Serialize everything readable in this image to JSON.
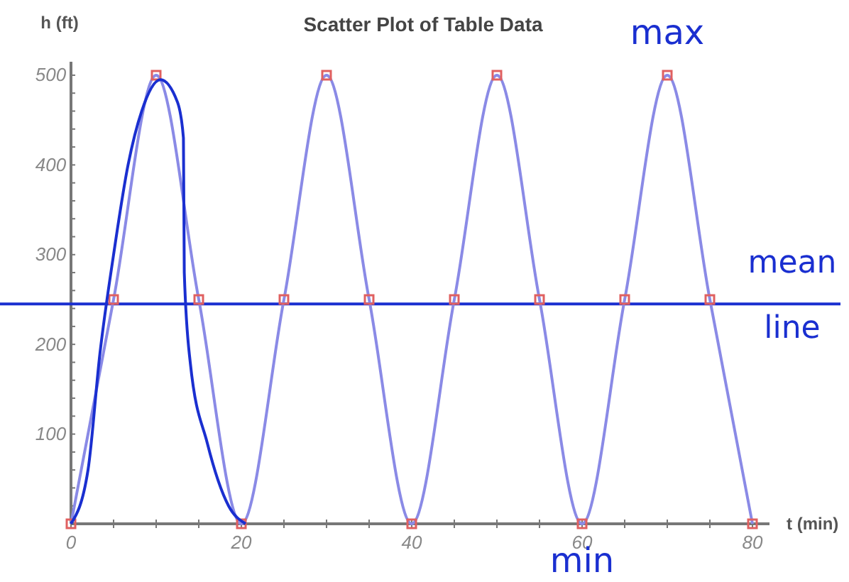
{
  "chart_data": {
    "type": "scatter",
    "title": "Scatter Plot of Table Data",
    "xlabel": "t (min)",
    "ylabel": "h (ft)",
    "xlim": [
      0,
      82
    ],
    "ylim": [
      0,
      515
    ],
    "xticks": [
      0,
      {
        "value": 5,
        "label": null
      },
      {
        "value": 10,
        "label": null
      },
      {
        "value": 15,
        "label": null
      },
      20,
      {
        "value": 25,
        "label": null
      },
      {
        "value": 30,
        "label": null
      },
      {
        "value": 35,
        "label": null
      },
      40,
      {
        "value": 45,
        "label": null
      },
      {
        "value": 50,
        "label": null
      },
      {
        "value": 55,
        "label": null
      },
      60,
      {
        "value": 65,
        "label": null
      },
      {
        "value": 70,
        "label": null
      },
      {
        "value": 75,
        "label": null
      },
      80
    ],
    "yticks": [
      {
        "value": 20,
        "label": null
      },
      {
        "value": 40,
        "label": null
      },
      {
        "value": 60,
        "label": null
      },
      {
        "value": 80,
        "label": null
      },
      100,
      {
        "value": 120,
        "label": null
      },
      {
        "value": 140,
        "label": null
      },
      {
        "value": 160,
        "label": null
      },
      {
        "value": 180,
        "label": null
      },
      200,
      {
        "value": 220,
        "label": null
      },
      {
        "value": 240,
        "label": null
      },
      {
        "value": 260,
        "label": null
      },
      {
        "value": 280,
        "label": null
      },
      300,
      {
        "value": 320,
        "label": null
      },
      {
        "value": 340,
        "label": null
      },
      {
        "value": 360,
        "label": null
      },
      {
        "value": 380,
        "label": null
      },
      400,
      {
        "value": 420,
        "label": null
      },
      {
        "value": 440,
        "label": null
      },
      {
        "value": 460,
        "label": null
      },
      {
        "value": 480,
        "label": null
      },
      500
    ],
    "grid": false,
    "x": [
      0,
      5,
      10,
      15,
      20,
      25,
      30,
      35,
      40,
      45,
      50,
      55,
      60,
      65,
      70,
      75,
      80
    ],
    "series": [
      {
        "type": "line",
        "marker": "none",
        "color": "#8a8ae6",
        "values": [
          0,
          250,
          500,
          250,
          0,
          250,
          500,
          250,
          0,
          250,
          500,
          250,
          0,
          250,
          500,
          250,
          0
        ]
      },
      {
        "marker": "square",
        "color": "#e06060",
        "values": [
          0,
          250,
          500,
          250,
          0,
          250,
          500,
          250,
          0,
          250,
          500,
          250,
          0,
          250,
          500,
          250,
          0
        ]
      },
      {
        "type": "line",
        "marker": "none",
        "color": "#1a2fd0",
        "x": [
          0,
          2,
          3.4,
          5,
          6.7,
          8.3,
          10.5,
          12.5,
          13.2,
          13.3,
          14,
          16,
          18.5,
          20.5
        ],
        "values": [
          0,
          60,
          190,
          300,
          400,
          460,
          495,
          470,
          430,
          280,
          180,
          90,
          20,
          0
        ]
      }
    ],
    "ref_lines": [
      {
        "axis": "y",
        "value": 245,
        "label": "mean line",
        "color": "#1a2fd0"
      }
    ],
    "annotations": [
      {
        "text": "max",
        "x": 70,
        "y": 500
      },
      {
        "text": "min",
        "x": 60,
        "y": 0
      }
    ]
  }
}
